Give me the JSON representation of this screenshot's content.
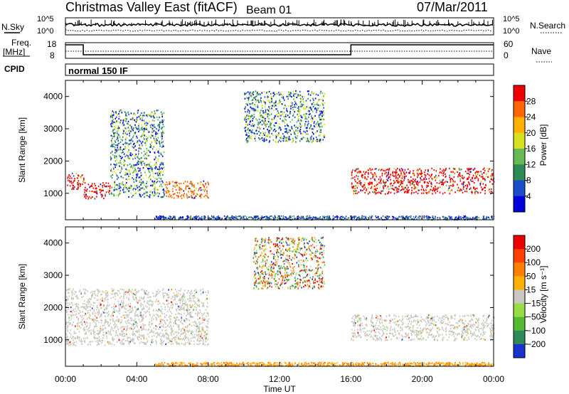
{
  "header": {
    "station": "Christmas Valley East (fitACF)",
    "beam": "Beam 01",
    "date": "07/Mar/2011"
  },
  "strips": {
    "nsky_label": "N.Sky",
    "nsky_ticks": [
      "10^5",
      "10^0"
    ],
    "nsearch_label": "N.Search",
    "nsearch_ticks": [
      "10^5",
      "10^0"
    ],
    "freq_label_line1": "Freq.",
    "freq_label_line2": "[MHz]",
    "freq_ticks": [
      "18",
      "8"
    ],
    "nave_label": "Nave",
    "nave_ticks": [
      "60",
      "0"
    ],
    "cpid_label": "CPID",
    "cpid_value": "normal 150 IF"
  },
  "chart_data": [
    {
      "type": "heatmap",
      "name": "power-panel",
      "ylabel": "Slant Range [km]",
      "xlabel": "",
      "x_ticks": [
        "00:00",
        "04:00",
        "08:00",
        "12:00",
        "16:00",
        "20:00",
        "00:00"
      ],
      "xlim_hours": [
        0,
        24
      ],
      "ylim_km": [
        180,
        4500
      ],
      "y_ticks": [
        1000,
        2000,
        3000,
        4000
      ],
      "colorbar": {
        "label": "Power [dB]",
        "ticks": [
          "28",
          "24",
          "20",
          "16",
          "12",
          "8",
          "4"
        ],
        "colors": [
          "#0000dd",
          "#1a4ccc",
          "#2e8b57",
          "#66bb55",
          "#d8e020",
          "#ffb000",
          "#ff6600",
          "#ee0000"
        ]
      },
      "scatter_regions": [
        {
          "t0": 0,
          "t1": 1,
          "r0": 1150,
          "r1": 1650,
          "level": "high",
          "color": "#ee0000"
        },
        {
          "t0": 1,
          "t1": 2.5,
          "r0": 850,
          "r1": 1350,
          "level": "high",
          "color": "#ee0000"
        },
        {
          "t0": 2.5,
          "t1": 5.5,
          "r0": 900,
          "r1": 3600,
          "level": "mixed",
          "color": "#66bb55"
        },
        {
          "t0": 5.5,
          "t1": 8,
          "r0": 850,
          "r1": 1400,
          "level": "high",
          "color": "#ff6600"
        },
        {
          "t0": 10,
          "t1": 14.5,
          "r0": 2600,
          "r1": 4200,
          "level": "low",
          "color": "#1a4ccc"
        },
        {
          "t0": 16,
          "t1": 24,
          "r0": 1000,
          "r1": 1800,
          "level": "high",
          "color": "#ee0000"
        }
      ]
    },
    {
      "type": "heatmap",
      "name": "velocity-panel",
      "ylabel": "Slant Range [km]",
      "xlabel": "Time UT",
      "x_ticks": [
        "00:00",
        "04:00",
        "08:00",
        "12:00",
        "16:00",
        "20:00",
        "00:00"
      ],
      "xlim_hours": [
        0,
        24
      ],
      "ylim_km": [
        180,
        4500
      ],
      "y_ticks": [
        1000,
        2000,
        3000,
        4000
      ],
      "colorbar": {
        "label": "Velocity [m s⁻¹]",
        "ticks": [
          "200",
          "100",
          "50",
          "15",
          "−15",
          "−50",
          "−100",
          "−200"
        ],
        "colors": [
          "#1a33cc",
          "#2e8b57",
          "#55bb33",
          "#99dd44",
          "#c8c8c0",
          "#ffb000",
          "#ff8000",
          "#ff4000",
          "#ee0000"
        ]
      },
      "scatter_regions": [
        {
          "t0": 0,
          "t1": 8,
          "r0": 850,
          "r1": 2600,
          "level": "ground",
          "color": "#c8c8c0"
        },
        {
          "t0": 10.5,
          "t1": 14.5,
          "r0": 2600,
          "r1": 4200,
          "level": "mixed",
          "color": "#c8c8c0"
        },
        {
          "t0": 16,
          "t1": 24,
          "r0": 1000,
          "r1": 1800,
          "level": "ground",
          "color": "#c8c8c0"
        }
      ]
    }
  ]
}
